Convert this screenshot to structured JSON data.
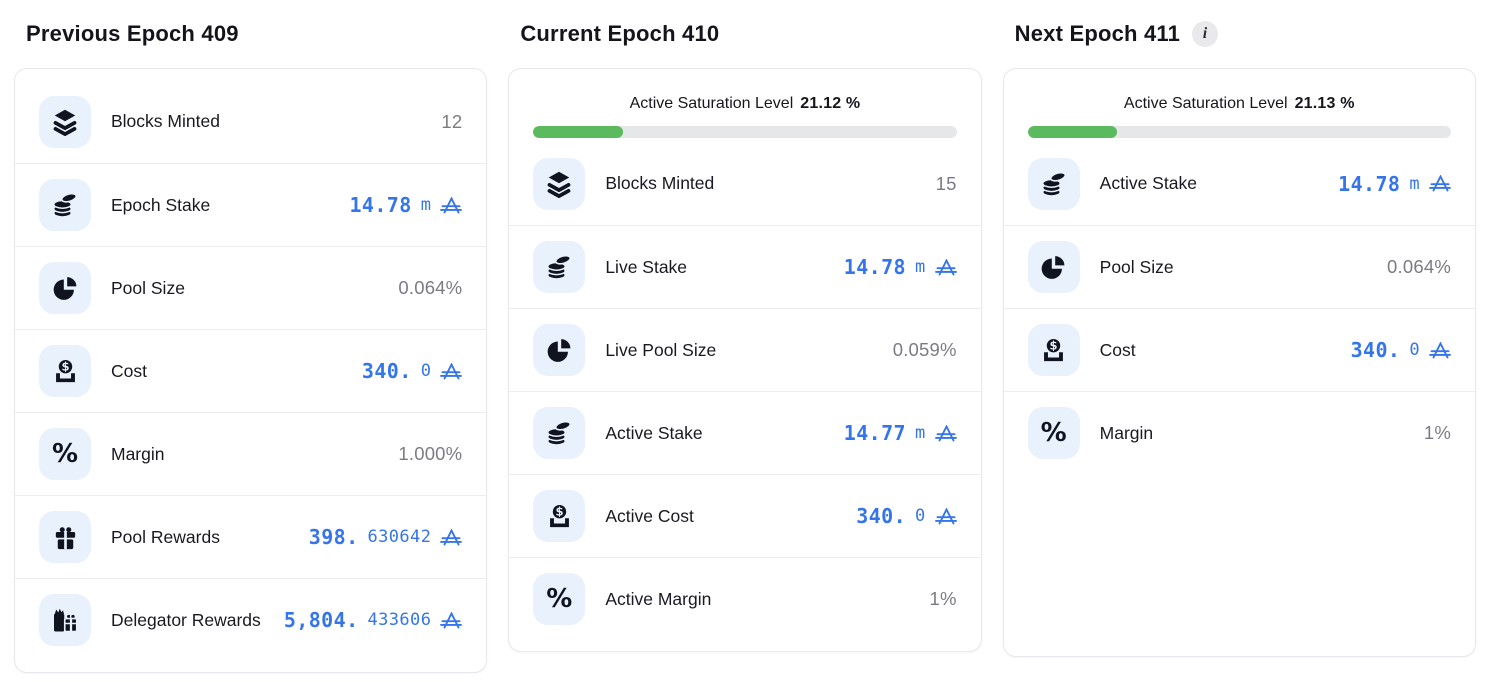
{
  "colors": {
    "accent_blue": "#3575eb",
    "saturation_green": "#5bba5e",
    "bar_track": "#e6e7e9",
    "tile_bg": "#e9f1fd",
    "value_gray": "#7b7b83",
    "text_dark": "#15141b"
  },
  "currency": "ADA",
  "columns": [
    {
      "id": "previous",
      "title": "Previous Epoch 409",
      "rows": [
        {
          "icon": "layers-icon",
          "label": "Blocks Minted",
          "type": "plain",
          "value": "12"
        },
        {
          "icon": "coins-icon",
          "label": "Epoch Stake",
          "type": "ada",
          "value_bold": "14.78",
          "value_light": "m"
        },
        {
          "icon": "pie-chart-icon",
          "label": "Pool Size",
          "type": "plain",
          "value": "0.064%"
        },
        {
          "icon": "coin-slot-icon",
          "label": "Cost",
          "type": "ada",
          "value_bold": "340.",
          "value_light": "0"
        },
        {
          "icon": "percent-icon",
          "label": "Margin",
          "type": "plain",
          "value": "1.000%"
        },
        {
          "icon": "gift-icon",
          "label": "Pool Rewards",
          "type": "ada",
          "value_bold": "398.",
          "value_light": "630642"
        },
        {
          "icon": "gifts-icon",
          "label": "Delegator Rewards",
          "type": "ada",
          "value_bold": "5,804.",
          "value_light": "433606"
        }
      ]
    },
    {
      "id": "current",
      "title": "Current Epoch 410",
      "saturation": {
        "label": "Active Saturation Level",
        "value": "21.12 %",
        "percent": 21.12
      },
      "rows": [
        {
          "icon": "layers-icon",
          "label": "Blocks Minted",
          "type": "plain",
          "value": "15"
        },
        {
          "icon": "coins-icon",
          "label": "Live Stake",
          "type": "ada",
          "value_bold": "14.78",
          "value_light": "m"
        },
        {
          "icon": "pie-chart-icon",
          "label": "Live Pool Size",
          "type": "plain",
          "value": "0.059%"
        },
        {
          "icon": "coins-icon",
          "label": "Active Stake",
          "type": "ada",
          "value_bold": "14.77",
          "value_light": "m"
        },
        {
          "icon": "coin-slot-icon",
          "label": "Active Cost",
          "type": "ada",
          "value_bold": "340.",
          "value_light": "0"
        },
        {
          "icon": "percent-icon",
          "label": "Active Margin",
          "type": "plain",
          "value": "1%"
        }
      ]
    },
    {
      "id": "next",
      "title": "Next Epoch 411",
      "info_badge": "i",
      "saturation": {
        "label": "Active Saturation Level",
        "value": "21.13 %",
        "percent": 21.13
      },
      "rows": [
        {
          "icon": "coins-icon",
          "label": "Active Stake",
          "type": "ada",
          "value_bold": "14.78",
          "value_light": "m"
        },
        {
          "icon": "pie-chart-icon",
          "label": "Pool Size",
          "type": "plain",
          "value": "0.064%"
        },
        {
          "icon": "coin-slot-icon",
          "label": "Cost",
          "type": "ada",
          "value_bold": "340.",
          "value_light": "0"
        },
        {
          "icon": "percent-icon",
          "label": "Margin",
          "type": "plain",
          "value": "1%"
        }
      ]
    }
  ]
}
